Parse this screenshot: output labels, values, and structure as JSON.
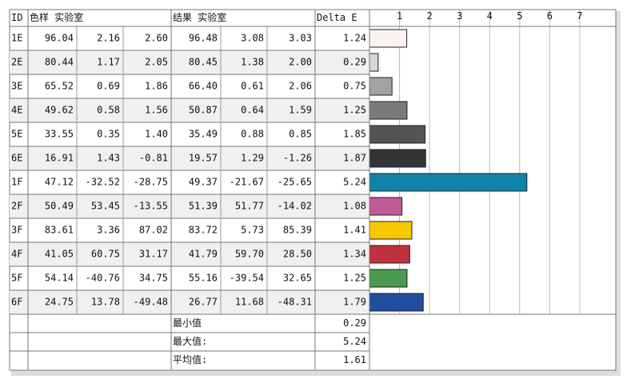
{
  "table": {
    "header": {
      "id": "ID",
      "sample": "色样 实验室",
      "result": "结果 实验室",
      "delta_e": "Delta E"
    },
    "rows": [
      {
        "id": "1E",
        "sample": [
          "96.04",
          "2.16",
          "2.60"
        ],
        "result": [
          "96.48",
          "3.08",
          "3.03"
        ],
        "delta_e": 1.24,
        "color": "#fbf3ef"
      },
      {
        "id": "2E",
        "sample": [
          "80.44",
          "1.17",
          "2.05"
        ],
        "result": [
          "80.45",
          "1.38",
          "2.00"
        ],
        "delta_e": 0.29,
        "color": "#d6d6d6"
      },
      {
        "id": "3E",
        "sample": [
          "65.52",
          "0.69",
          "1.86"
        ],
        "result": [
          "66.40",
          "0.61",
          "2.06"
        ],
        "delta_e": 0.75,
        "color": "#a3a3a3"
      },
      {
        "id": "4E",
        "sample": [
          "49.62",
          "0.58",
          "1.56"
        ],
        "result": [
          "50.87",
          "0.64",
          "1.59"
        ],
        "delta_e": 1.25,
        "color": "#7a7a7a"
      },
      {
        "id": "5E",
        "sample": [
          "33.55",
          "0.35",
          "1.40"
        ],
        "result": [
          "35.49",
          "0.88",
          "0.85"
        ],
        "delta_e": 1.85,
        "color": "#545454"
      },
      {
        "id": "6E",
        "sample": [
          "16.91",
          "1.43",
          "-0.81"
        ],
        "result": [
          "19.57",
          "1.29",
          "-1.26"
        ],
        "delta_e": 1.87,
        "color": "#333335"
      },
      {
        "id": "1F",
        "sample": [
          "47.12",
          "-32.52",
          "-28.75"
        ],
        "result": [
          "49.37",
          "-21.67",
          "-25.65"
        ],
        "delta_e": 5.24,
        "color": "#0f84a8"
      },
      {
        "id": "2F",
        "sample": [
          "50.49",
          "53.45",
          "-13.55"
        ],
        "result": [
          "51.39",
          "51.77",
          "-14.02"
        ],
        "delta_e": 1.08,
        "color": "#c05a98"
      },
      {
        "id": "3F",
        "sample": [
          "83.61",
          "3.36",
          "87.02"
        ],
        "result": [
          "83.72",
          "5.73",
          "85.39"
        ],
        "delta_e": 1.41,
        "color": "#f7c800"
      },
      {
        "id": "4F",
        "sample": [
          "41.05",
          "60.75",
          "31.17"
        ],
        "result": [
          "41.79",
          "59.70",
          "28.50"
        ],
        "delta_e": 1.34,
        "color": "#c0303e"
      },
      {
        "id": "5F",
        "sample": [
          "54.14",
          "-40.76",
          "34.75"
        ],
        "result": [
          "55.16",
          "-39.54",
          "32.65"
        ],
        "delta_e": 1.25,
        "color": "#4a9a50"
      },
      {
        "id": "6F",
        "sample": [
          "24.75",
          "13.78",
          "-49.48"
        ],
        "result": [
          "26.77",
          "11.68",
          "-48.31"
        ],
        "delta_e": 1.79,
        "color": "#1f4e9c"
      }
    ],
    "summary": [
      {
        "label": "最小值",
        "value": 0.29
      },
      {
        "label": "最大值:",
        "value": 5.24
      },
      {
        "label": "平均值:",
        "value": 1.61
      }
    ]
  },
  "chart": {
    "xlim": [
      0,
      8.2
    ],
    "xticks": [
      1,
      2,
      3,
      4,
      5,
      6,
      7
    ],
    "grid": true
  }
}
